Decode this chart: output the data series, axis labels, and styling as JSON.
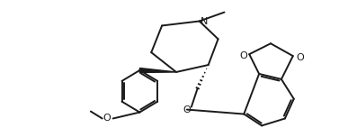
{
  "bg_color": "#ffffff",
  "line_color": "#1a1a1a",
  "line_width": 1.4,
  "font_size": 7.5,
  "figsize": [
    3.87,
    1.52
  ],
  "dpi": 100,
  "label_N": "N",
  "label_O1": "O",
  "label_O2": "O",
  "label_O3": "O",
  "label_OMe": "O"
}
